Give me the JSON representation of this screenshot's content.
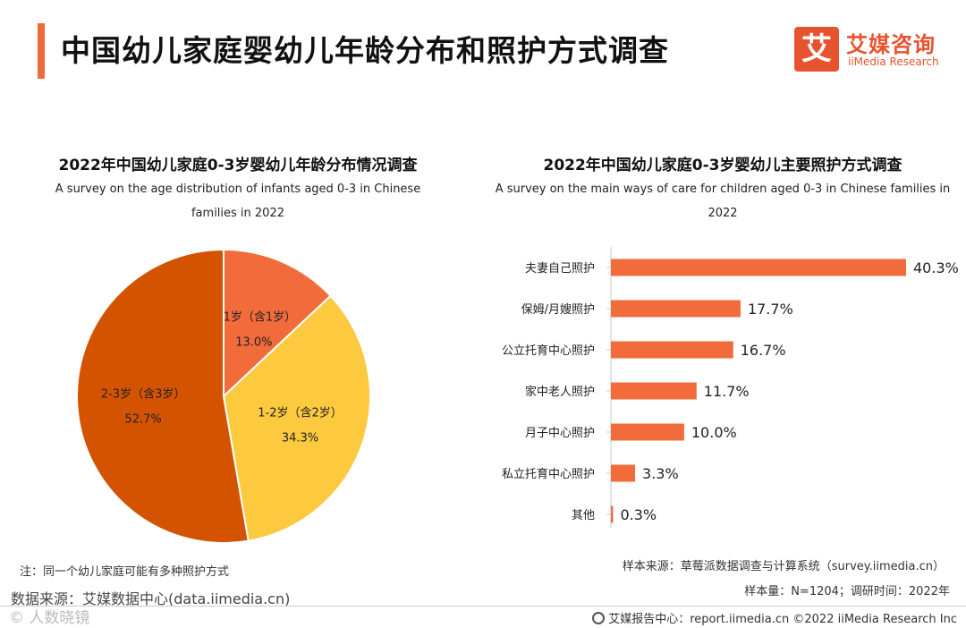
{
  "header": {
    "title": "中国幼儿家庭婴幼儿年龄分布和照护方式调查",
    "logo_mark": "艾",
    "logo_cn": "艾媒咨询",
    "logo_en": "iiMedia Research",
    "accent_color": "#ee6a3a"
  },
  "left_panel": {
    "title": "2022年中国幼儿家庭0-3岁婴幼儿年龄分布情况调查",
    "subtitle": "A survey on the age distribution of infants aged 0-3 in Chinese families in 2022"
  },
  "right_panel": {
    "title": "2022年中国幼儿家庭0-3岁婴幼儿主要照护方式调查",
    "subtitle": "A survey on the main ways of care for children aged 0-3 in Chinese families in 2022"
  },
  "chart_data": [
    {
      "type": "pie",
      "title": "2022年中国幼儿家庭0-3岁婴幼儿年龄分布情况调查",
      "categories": [
        "0-1岁（含1岁）",
        "1-2岁（含2岁）",
        "2-3岁（含3岁）"
      ],
      "values": [
        13.0,
        34.3,
        52.7
      ],
      "value_labels": [
        "13.0%",
        "34.3%",
        "52.7%"
      ],
      "colors": [
        "#f26b3b",
        "#fcc93f",
        "#d45300"
      ],
      "start_angle": "12 o'clock, clockwise",
      "legend": "none"
    },
    {
      "type": "bar",
      "orientation": "horizontal",
      "title": "2022年中国幼儿家庭0-3岁婴幼儿主要照护方式调查",
      "categories": [
        "夫妻自己照护",
        "保姆/月嫂照护",
        "公立托育中心照护",
        "家中老人照护",
        "月子中心照护",
        "私立托育中心照护",
        "其他"
      ],
      "values": [
        40.3,
        17.7,
        16.7,
        11.7,
        10.0,
        3.3,
        0.3
      ],
      "value_labels": [
        "40.3%",
        "17.7%",
        "16.7%",
        "11.7%",
        "10.0%",
        "3.3%",
        "0.3%"
      ],
      "unit": "%",
      "bar_color": "#f26b3b",
      "grid": false,
      "legend": "none"
    }
  ],
  "footer": {
    "note": "注：同一个幼儿家庭可能有多种照护方式",
    "source_left": "数据来源：艾媒数据中心(data.iimedia.cn)",
    "source_right": "样本来源：草莓派数据调查与计算系统（survey.iimedia.cn）",
    "sample": "样本量：N=1204；调研时间：2022年",
    "watermark": "© 人数晓镜",
    "footer_text": "艾媒报告中心：report.iimedia.cn  ©2022  iiMedia Research  Inc"
  }
}
